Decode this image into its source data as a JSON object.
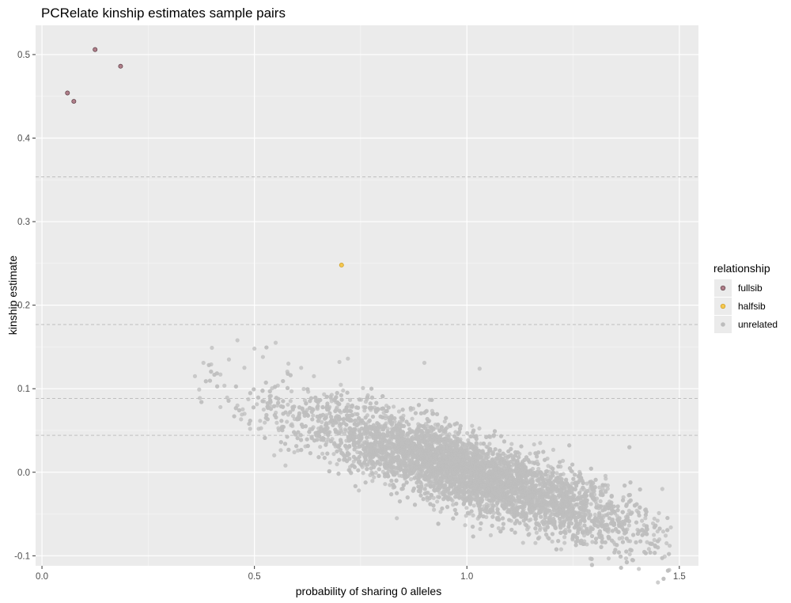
{
  "chart_data": {
    "type": "scatter",
    "title": "PCRelate kinship estimates sample pairs",
    "xlabel": "probability of sharing 0 alleles",
    "ylabel": "kinship estimate",
    "xlim": [
      -0.015,
      1.545
    ],
    "ylim": [
      -0.112,
      0.535
    ],
    "x_ticks": [
      0.0,
      0.5,
      1.0,
      1.5
    ],
    "x_tick_labels": [
      "0.0",
      "0.5",
      "1.0",
      "1.5"
    ],
    "y_ticks": [
      -0.1,
      0.0,
      0.1,
      0.2,
      0.3,
      0.4,
      0.5
    ],
    "y_tick_labels": [
      "-0.1",
      "0.0",
      "0.1",
      "0.2",
      "0.3",
      "0.4",
      "0.5"
    ],
    "reference_lines_y": [
      0.0442,
      0.0884,
      0.1768,
      0.3536
    ],
    "grid": true,
    "legend": {
      "title": "relationship",
      "position": "right",
      "entries": [
        {
          "label": "fullsib",
          "color": "#b07f8a"
        },
        {
          "label": "halfsib",
          "color": "#f5c750"
        },
        {
          "label": "unrelated",
          "color": "#bdbdbd"
        }
      ]
    },
    "series": [
      {
        "name": "fullsib",
        "color": "#b07f8a",
        "points": [
          [
            0.06,
            0.454
          ],
          [
            0.075,
            0.444
          ],
          [
            0.125,
            0.506
          ],
          [
            0.185,
            0.486
          ]
        ]
      },
      {
        "name": "halfsib",
        "color": "#f5c750",
        "points": [
          [
            0.705,
            0.248
          ]
        ]
      },
      {
        "name": "unrelated",
        "color": "#bdbdbd",
        "cloud": {
          "center": [
            1.0,
            0.0
          ],
          "slope": -0.168,
          "x_spread": 0.2,
          "y_residual_spread": 0.022,
          "x_range": [
            0.35,
            1.48
          ]
        },
        "points": [
          [
            0.36,
            0.115
          ],
          [
            0.38,
            0.131
          ],
          [
            0.4,
            0.149
          ],
          [
            0.42,
            0.117
          ],
          [
            0.44,
            0.135
          ],
          [
            0.46,
            0.158
          ],
          [
            0.5,
            0.148
          ],
          [
            0.52,
            0.138
          ],
          [
            0.55,
            0.155
          ],
          [
            0.58,
            0.13
          ],
          [
            0.61,
            0.125
          ],
          [
            0.64,
            0.115
          ],
          [
            0.7,
            0.132
          ],
          [
            0.72,
            0.136
          ],
          [
            0.9,
            0.131
          ],
          [
            1.03,
            0.124
          ],
          [
            0.37,
            0.099
          ],
          [
            0.42,
            0.078
          ],
          [
            0.46,
            0.08
          ],
          [
            0.51,
            0.052
          ],
          [
            0.69,
            0.088
          ],
          [
            1.29,
            -0.072
          ],
          [
            1.33,
            -0.07
          ],
          [
            1.36,
            -0.064
          ],
          [
            1.42,
            -0.055
          ],
          [
            1.44,
            -0.075
          ],
          [
            1.46,
            -0.02
          ],
          [
            1.47,
            -0.085
          ],
          [
            1.48,
            -0.066
          ],
          [
            1.4,
            -0.046
          ],
          [
            0.86,
            0.046
          ],
          [
            0.9,
            0.038
          ],
          [
            0.95,
            0.025
          ],
          [
            1.0,
            0.01
          ],
          [
            1.05,
            -0.005
          ],
          [
            1.1,
            -0.015
          ],
          [
            1.15,
            -0.028
          ],
          [
            1.2,
            -0.038
          ],
          [
            0.8,
            0.055
          ],
          [
            0.75,
            0.062
          ]
        ]
      }
    ]
  }
}
